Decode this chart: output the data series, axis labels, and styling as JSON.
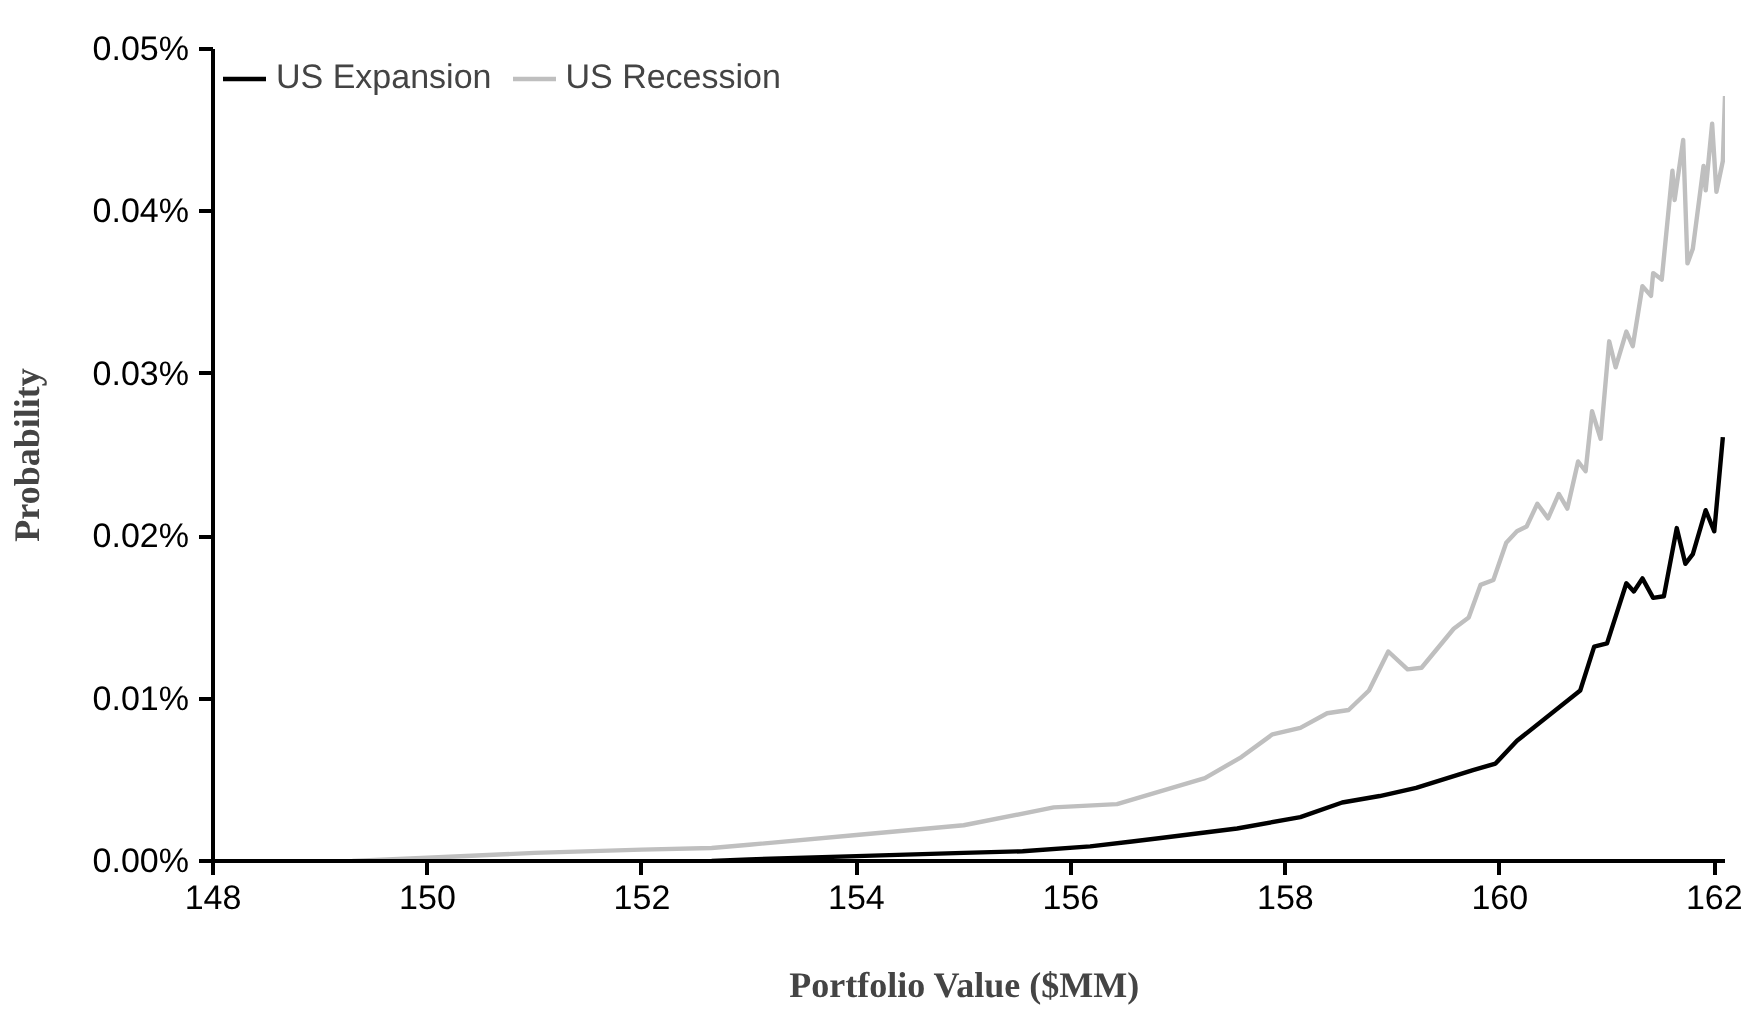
{
  "chart_data": {
    "type": "line",
    "xlabel": "Portfolio Value  ($MM)",
    "ylabel": "Probability",
    "xlim": [
      148,
      162.1
    ],
    "xticks": [
      148,
      150,
      152,
      154,
      156,
      158,
      160,
      162
    ],
    "ylim": [
      0,
      0.05
    ],
    "yticks": [
      {
        "value": 0,
        "label": "0.00%"
      },
      {
        "value": 0.01,
        "label": "0.01%"
      },
      {
        "value": 0.02,
        "label": "0.02%"
      },
      {
        "value": 0.03,
        "label": "0.03%"
      },
      {
        "value": 0.04,
        "label": "0.04%"
      },
      {
        "value": 0.05,
        "label": "0.05%"
      }
    ],
    "grid": false,
    "legend": "top left",
    "marker": "none",
    "line_style": "solid",
    "series": [
      {
        "name": "US Expansion",
        "color": "#000000",
        "x": [
          152.65,
          153,
          154,
          155,
          155.55,
          156.18,
          156.57,
          156.82,
          157.55,
          158.14,
          158.53,
          158.88,
          159.22,
          159.75,
          159.96,
          160.16,
          160.75,
          160.88,
          161.0,
          161.18,
          161.25,
          161.33,
          161.43,
          161.53,
          161.65,
          161.73,
          161.8,
          161.92,
          162.0,
          162.08
        ],
        "values": [
          0,
          0.0001,
          0.0003,
          0.0005,
          0.0006,
          0.0009,
          0.0012,
          0.0014,
          0.002,
          0.0027,
          0.0036,
          0.004,
          0.0045,
          0.0056,
          0.006,
          0.0074,
          0.0105,
          0.0132,
          0.0134,
          0.0171,
          0.0166,
          0.0174,
          0.0162,
          0.0163,
          0.0205,
          0.0183,
          0.0189,
          0.0216,
          0.0203,
          0.0261
        ]
      },
      {
        "name": "US Recession",
        "color": "#bfbfbf",
        "x": [
          149.3,
          150,
          151,
          152,
          152.65,
          153,
          154,
          155,
          155.84,
          156.43,
          157.25,
          157.59,
          157.88,
          158.14,
          158.39,
          158.59,
          158.78,
          158.96,
          159.14,
          159.27,
          159.57,
          159.71,
          159.82,
          159.94,
          160.06,
          160.16,
          160.25,
          160.35,
          160.45,
          160.55,
          160.63,
          160.73,
          160.8,
          160.86,
          160.94,
          161.02,
          161.08,
          161.18,
          161.24,
          161.33,
          161.41,
          161.43,
          161.51,
          161.61,
          161.63,
          161.71,
          161.75,
          161.8,
          161.9,
          161.92,
          161.98,
          162.02,
          162.08,
          162.1
        ],
        "values": [
          0,
          0.0002,
          0.0005,
          0.0007,
          0.0008,
          0.001,
          0.0016,
          0.0022,
          0.0033,
          0.0035,
          0.0051,
          0.0064,
          0.0078,
          0.0082,
          0.0091,
          0.0093,
          0.0105,
          0.0129,
          0.0118,
          0.0119,
          0.0143,
          0.015,
          0.017,
          0.0173,
          0.0196,
          0.0203,
          0.0206,
          0.022,
          0.0211,
          0.0226,
          0.0217,
          0.0246,
          0.024,
          0.0277,
          0.026,
          0.032,
          0.0304,
          0.0326,
          0.0317,
          0.0354,
          0.0348,
          0.0362,
          0.0358,
          0.0425,
          0.0407,
          0.0444,
          0.0368,
          0.0377,
          0.0428,
          0.0413,
          0.0454,
          0.0412,
          0.0431,
          0.0471
        ]
      }
    ]
  }
}
